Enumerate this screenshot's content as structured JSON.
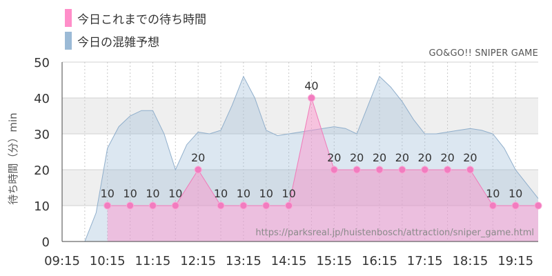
{
  "legend": {
    "wait_label": "今日これまでの待ち時間",
    "forecast_label": "今日の混雑予想",
    "wait_color": "#ff8ec9",
    "forecast_color": "#9bbad6"
  },
  "subtitle": "GO&GO!! SNIPER GAME",
  "watermark": "https://parksreal.jp/huistenbosch/attraction/sniper_game.html",
  "chart_data": {
    "type": "area",
    "ylabel": "待ち時間（分）min",
    "ylim": [
      0,
      50
    ],
    "yticks": [
      0,
      10,
      20,
      30,
      40,
      50
    ],
    "xlim": [
      "09:15",
      "19:45"
    ],
    "xticks": [
      "09:15",
      "10:15",
      "11:15",
      "12:15",
      "13:15",
      "14:15",
      "15:15",
      "16:15",
      "17:15",
      "18:15",
      "19:15"
    ],
    "grid": true,
    "series": [
      {
        "name": "今日の混雑予想",
        "color": "#9bbad6",
        "x": [
          "09:15",
          "09:45",
          "10:00",
          "10:15",
          "10:30",
          "10:45",
          "11:00",
          "11:15",
          "11:30",
          "11:45",
          "12:00",
          "12:15",
          "12:30",
          "12:45",
          "13:00",
          "13:15",
          "13:30",
          "13:45",
          "14:00",
          "14:15",
          "14:30",
          "14:45",
          "15:00",
          "15:15",
          "15:30",
          "15:45",
          "16:00",
          "16:15",
          "16:30",
          "16:45",
          "17:00",
          "17:15",
          "17:30",
          "17:45",
          "18:00",
          "18:15",
          "18:30",
          "18:45",
          "19:00",
          "19:15",
          "19:30",
          "19:45"
        ],
        "values": [
          0,
          0,
          8,
          26,
          32,
          35,
          36.5,
          36.5,
          30,
          20,
          27,
          30.5,
          30,
          31,
          38,
          46,
          40,
          31,
          29.5,
          30,
          30.5,
          31,
          31.5,
          32,
          31.5,
          30,
          38,
          46,
          43,
          39,
          34,
          30,
          30,
          30.5,
          31,
          31.5,
          31,
          30,
          26,
          20,
          16,
          12
        ]
      },
      {
        "name": "今日これまでの待ち時間",
        "color": "#ff8ec9",
        "x": [
          "10:15",
          "10:45",
          "11:15",
          "11:45",
          "12:15",
          "12:45",
          "13:15",
          "13:45",
          "14:15",
          "14:45",
          "15:15",
          "15:45",
          "16:15",
          "16:45",
          "17:15",
          "17:45",
          "18:15",
          "18:45",
          "19:15",
          "19:45"
        ],
        "values": [
          10,
          10,
          10,
          10,
          20,
          10,
          10,
          10,
          10,
          40,
          20,
          20,
          20,
          20,
          20,
          20,
          20,
          10,
          10,
          10
        ],
        "data_labels": [
          "10",
          "10",
          "10",
          "10",
          "20",
          "10",
          "10",
          "10",
          "10",
          "40",
          "20",
          "20",
          "20",
          "20",
          "20",
          "20",
          "20",
          "10",
          "10",
          ""
        ]
      }
    ]
  }
}
